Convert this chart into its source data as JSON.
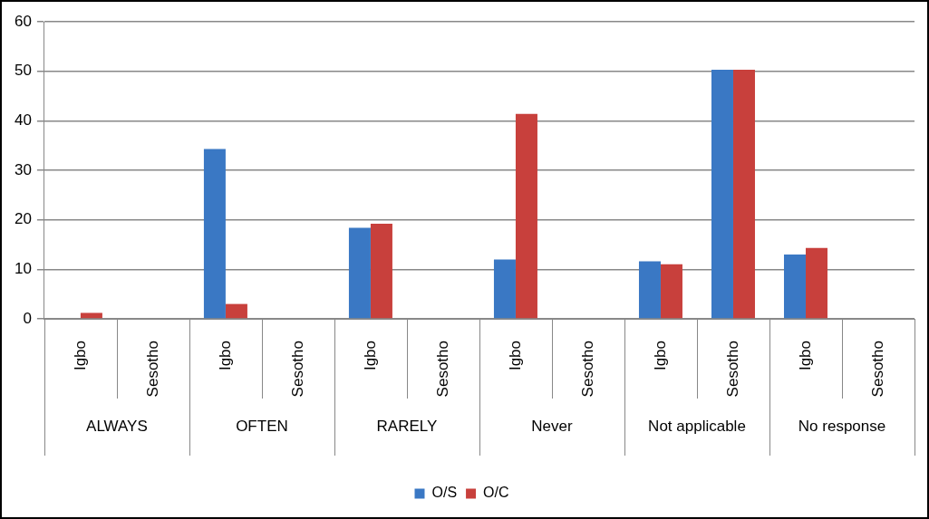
{
  "chart_data": {
    "type": "bar",
    "categories": [
      "Igbo",
      "Sesotho",
      "Igbo",
      "Sesotho",
      "Igbo",
      "Sesotho",
      "Igbo",
      "Sesotho",
      "Igbo",
      "Sesotho",
      "Igbo",
      "Sesotho"
    ],
    "annotations": [
      "ALWAYS",
      "OFTEN",
      "RARELY",
      "Never",
      "Not applicable",
      "No response"
    ],
    "series": [
      {
        "name": "O/S",
        "color": "#3a78c4",
        "values": [
          null,
          null,
          34.3,
          null,
          18.4,
          null,
          12,
          null,
          11.6,
          50.3,
          13,
          null
        ]
      },
      {
        "name": "O/C",
        "color": "#c8403c",
        "values": [
          1.2,
          null,
          3,
          null,
          19.2,
          null,
          41.4,
          null,
          11,
          50.3,
          14.3,
          null
        ]
      }
    ],
    "ylim": [
      0,
      60
    ],
    "yticks": [
      0,
      10,
      20,
      30,
      40,
      50,
      60
    ],
    "grid": "y",
    "legend": "bottom"
  }
}
